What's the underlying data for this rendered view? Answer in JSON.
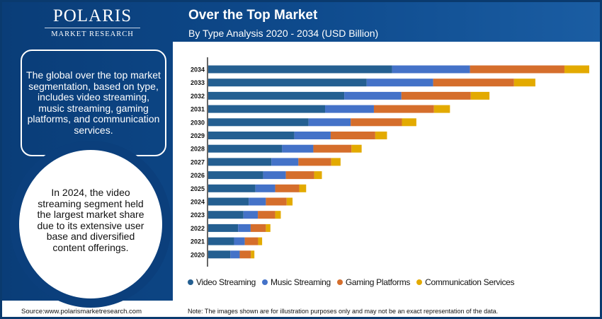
{
  "brand": {
    "name": "POLARIS",
    "tagline": "MARKET RESEARCH"
  },
  "header": {
    "title": "Over the Top Market",
    "subtitle": "By Type Analysis 2020 - 2034 (USD Billion)"
  },
  "sidebar": {
    "summary": "The global over the top market segmentation, based on type, includes video streaming, music streaming, gaming platforms, and communication services.",
    "highlight": "In 2024, the video streaming segment held the largest market share due to its extensive user base and diversified content offerings."
  },
  "footer": {
    "source": "Source:www.polarismarketresearch.com",
    "note": "Note: The images shown are for illustration purposes only and may not be an exact representation of the data."
  },
  "chart_data": {
    "type": "bar",
    "orientation": "horizontal",
    "stacked": true,
    "title": "Over the Top Market",
    "subtitle": "By Type Analysis 2020 - 2034 (USD Billion)",
    "categories": [
      "2034",
      "2033",
      "2032",
      "2031",
      "2030",
      "2029",
      "2028",
      "2027",
      "2026",
      "2025",
      "2024",
      "2023",
      "2022",
      "2021",
      "2020"
    ],
    "series": [
      {
        "name": "Video Streaming",
        "color": "#245f91",
        "values": [
          68.9,
          59.4,
          51.0,
          43.8,
          37.6,
          32.3,
          27.7,
          23.7,
          20.6,
          17.7,
          15.2,
          13.2,
          11.2,
          9.7,
          8.3
        ]
      },
      {
        "name": "Music Streaming",
        "color": "#4472c8",
        "values": [
          29.2,
          24.9,
          21.4,
          18.3,
          15.8,
          13.6,
          11.7,
          10.1,
          8.5,
          7.4,
          6.4,
          5.4,
          4.7,
          4.0,
          3.5
        ]
      },
      {
        "name": "Gaming Platforms",
        "color": "#d56e2c",
        "values": [
          35.4,
          30.3,
          26.0,
          22.5,
          19.2,
          16.7,
          14.3,
          12.3,
          10.6,
          9.0,
          7.8,
          6.5,
          5.7,
          5.0,
          4.2
        ]
      },
      {
        "name": "Communication Services",
        "color": "#e3aa00",
        "values": [
          9.3,
          8.0,
          7.0,
          6.0,
          5.4,
          4.4,
          3.8,
          3.5,
          2.9,
          2.6,
          2.2,
          2.1,
          1.7,
          1.5,
          1.3
        ]
      }
    ],
    "xaxis_visible": false,
    "grid": false,
    "legend": "bottom"
  }
}
